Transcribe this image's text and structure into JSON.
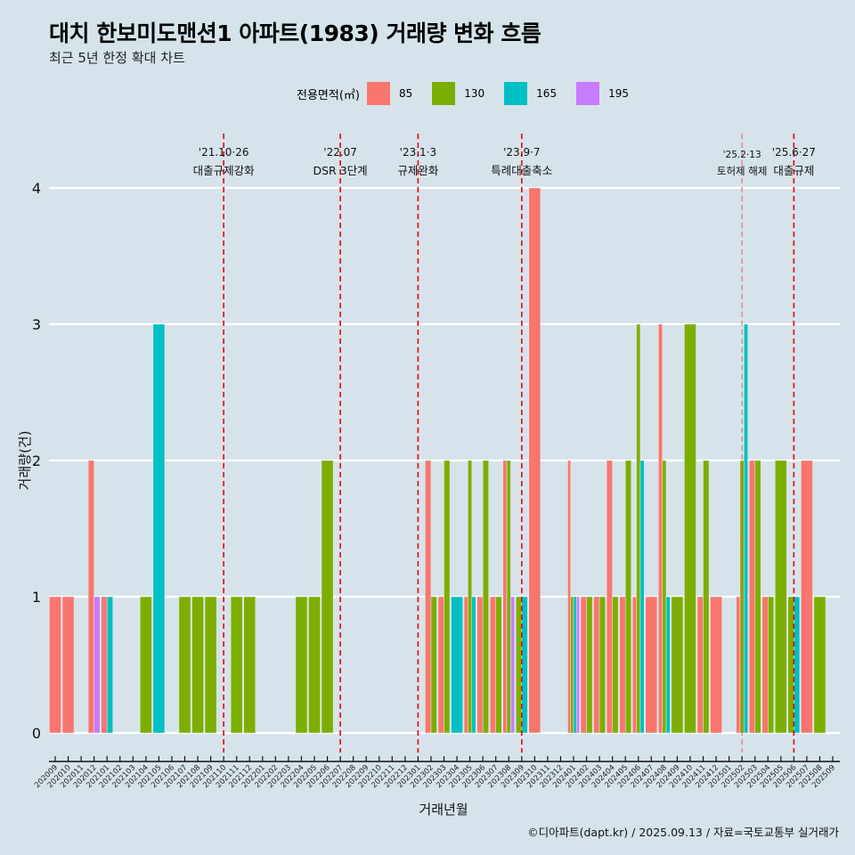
{
  "header": {
    "title": "대치 한보미도맨션1 아파트(1983) 거래량 변화 흐름",
    "subtitle": "최근 5년 한정 확대 차트"
  },
  "caption": "©디아파트(dapt.kr) / 2025.09.13 / 자료=국토교통부 실거래가",
  "chart_data": {
    "type": "bar",
    "position": "dodge",
    "xlabel": "거래년월",
    "ylabel": "거래량(건)",
    "ylim": [
      0,
      4
    ],
    "yticks": [
      0,
      1,
      2,
      3,
      4
    ],
    "grid": "horizontal major",
    "legend": {
      "title": "전용면적(㎡)",
      "placement": "top",
      "entries": [
        {
          "key": "85",
          "label": "85",
          "color": "#f8766d"
        },
        {
          "key": "130",
          "label": "130",
          "color": "#7cae00"
        },
        {
          "key": "165",
          "label": "165",
          "color": "#00bfc4"
        },
        {
          "key": "195",
          "label": "195",
          "color": "#c77cff"
        }
      ]
    },
    "months": [
      "202009",
      "202010",
      "202011",
      "202012",
      "202101",
      "202102",
      "202103",
      "202104",
      "202105",
      "202106",
      "202107",
      "202108",
      "202109",
      "202110",
      "202111",
      "202112",
      "202201",
      "202202",
      "202203",
      "202204",
      "202205",
      "202206",
      "202207",
      "202208",
      "202209",
      "202210",
      "202211",
      "202212",
      "202301",
      "202302",
      "202303",
      "202304",
      "202305",
      "202306",
      "202307",
      "202308",
      "202309",
      "202310",
      "202311",
      "202312",
      "202401",
      "202402",
      "202403",
      "202404",
      "202405",
      "202406",
      "202407",
      "202408",
      "202409",
      "202410",
      "202411",
      "202412",
      "202501",
      "202502",
      "202503",
      "202504",
      "202505",
      "202506",
      "202507",
      "202508",
      "202509"
    ],
    "data": [
      {
        "x": "202009",
        "values": {
          "85": 1
        }
      },
      {
        "x": "202010",
        "values": {
          "85": 1
        }
      },
      {
        "x": "202012",
        "values": {
          "85": 2,
          "195": 1
        }
      },
      {
        "x": "202101",
        "values": {
          "85": 1,
          "165": 1
        }
      },
      {
        "x": "202104",
        "values": {
          "130": 1
        }
      },
      {
        "x": "202105",
        "values": {
          "165": 3
        }
      },
      {
        "x": "202107",
        "values": {
          "130": 1
        }
      },
      {
        "x": "202108",
        "values": {
          "130": 1
        }
      },
      {
        "x": "202109",
        "values": {
          "130": 1
        }
      },
      {
        "x": "202111",
        "values": {
          "130": 1
        }
      },
      {
        "x": "202112",
        "values": {
          "130": 1
        }
      },
      {
        "x": "202204",
        "values": {
          "130": 1
        }
      },
      {
        "x": "202205",
        "values": {
          "130": 1
        }
      },
      {
        "x": "202206",
        "values": {
          "130": 2
        }
      },
      {
        "x": "202302",
        "values": {
          "85": 2,
          "130": 1
        }
      },
      {
        "x": "202303",
        "values": {
          "85": 1,
          "130": 2
        }
      },
      {
        "x": "202304",
        "values": {
          "165": 1
        }
      },
      {
        "x": "202305",
        "values": {
          "85": 1,
          "130": 2,
          "165": 1
        }
      },
      {
        "x": "202306",
        "values": {
          "85": 1,
          "130": 2
        }
      },
      {
        "x": "202307",
        "values": {
          "85": 1,
          "130": 1
        }
      },
      {
        "x": "202308",
        "values": {
          "85": 2,
          "130": 2,
          "195": 1
        }
      },
      {
        "x": "202309",
        "values": {
          "130": 1,
          "165": 1
        }
      },
      {
        "x": "202310",
        "values": {
          "85": 4
        }
      },
      {
        "x": "202401",
        "values": {
          "85": 2,
          "130": 1,
          "165": 1,
          "195": 1
        }
      },
      {
        "x": "202402",
        "values": {
          "85": 1,
          "130": 1
        }
      },
      {
        "x": "202403",
        "values": {
          "85": 1,
          "130": 1
        }
      },
      {
        "x": "202404",
        "values": {
          "85": 2,
          "130": 1
        }
      },
      {
        "x": "202405",
        "values": {
          "85": 1,
          "130": 2
        }
      },
      {
        "x": "202406",
        "values": {
          "85": 1,
          "130": 3,
          "165": 2
        }
      },
      {
        "x": "202407",
        "values": {
          "85": 1
        }
      },
      {
        "x": "202408",
        "values": {
          "85": 3,
          "130": 2,
          "165": 1
        }
      },
      {
        "x": "202409",
        "values": {
          "130": 1
        }
      },
      {
        "x": "202410",
        "values": {
          "130": 3
        }
      },
      {
        "x": "202411",
        "values": {
          "85": 1,
          "130": 2
        }
      },
      {
        "x": "202412",
        "values": {
          "85": 1
        }
      },
      {
        "x": "202502",
        "values": {
          "85": 1,
          "130": 2,
          "165": 3
        }
      },
      {
        "x": "202503",
        "values": {
          "85": 2,
          "130": 2
        }
      },
      {
        "x": "202504",
        "values": {
          "85": 1,
          "130": 1
        }
      },
      {
        "x": "202505",
        "values": {
          "130": 2
        }
      },
      {
        "x": "202506",
        "values": {
          "130": 1,
          "165": 1
        }
      },
      {
        "x": "202507",
        "values": {
          "85": 2
        }
      },
      {
        "x": "202508",
        "values": {
          "130": 1
        }
      }
    ],
    "annotations": [
      {
        "x": "202110",
        "date": "'21.10·26",
        "text": "대출규제강화",
        "style": "bold"
      },
      {
        "x": "202207",
        "date": "'22.07",
        "text": "DSR 3단계",
        "style": "bold"
      },
      {
        "x": "202301",
        "date": "'23.1·3",
        "text": "규제완화",
        "style": "bold"
      },
      {
        "x": "202309",
        "date": "'23.9·7",
        "text": "특례대출축소",
        "style": "bold"
      },
      {
        "x": "202502",
        "date": "'25.2·13",
        "text": "토허제 해제",
        "style": "light"
      },
      {
        "x": "202506",
        "date": "'25.6·27",
        "text": "대출규제",
        "style": "bold"
      }
    ],
    "line_color": "#e8000b"
  }
}
